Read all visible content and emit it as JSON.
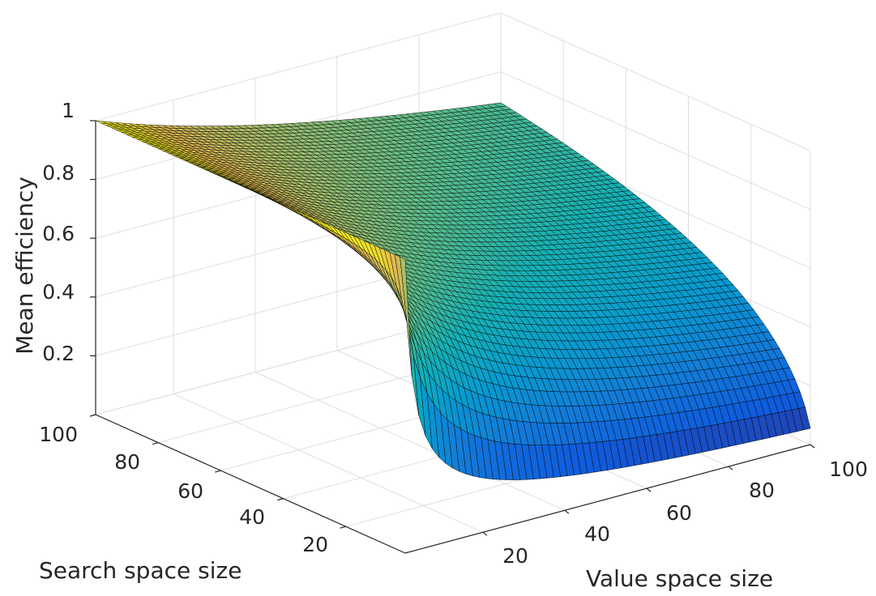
{
  "chart_data": {
    "type": "surface",
    "title": "",
    "xlabel": "Value space size",
    "ylabel": "Search space size",
    "zlabel": "Mean efficiency",
    "x_ticks": [
      "20",
      "40",
      "60",
      "80",
      "100"
    ],
    "y_ticks": [
      "20",
      "40",
      "60",
      "80",
      "100"
    ],
    "z_ticks": [
      "0.2",
      "0.4",
      "0.6",
      "0.8",
      "1"
    ],
    "xlim": [
      1,
      100
    ],
    "ylim": [
      1,
      100
    ],
    "zlim": [
      0,
      1
    ],
    "grid": true,
    "colormap": "parula",
    "edge_color": "#000000",
    "description_points": [
      {
        "search_space": 100,
        "value_space": 1,
        "efficiency": 1.0
      },
      {
        "search_space": 1,
        "value_space": 1,
        "efficiency": 1.0
      },
      {
        "search_space": 1,
        "value_space": 100,
        "efficiency": 0.0
      },
      {
        "search_space": 100,
        "value_space": 100,
        "efficiency": 0.25
      }
    ]
  }
}
